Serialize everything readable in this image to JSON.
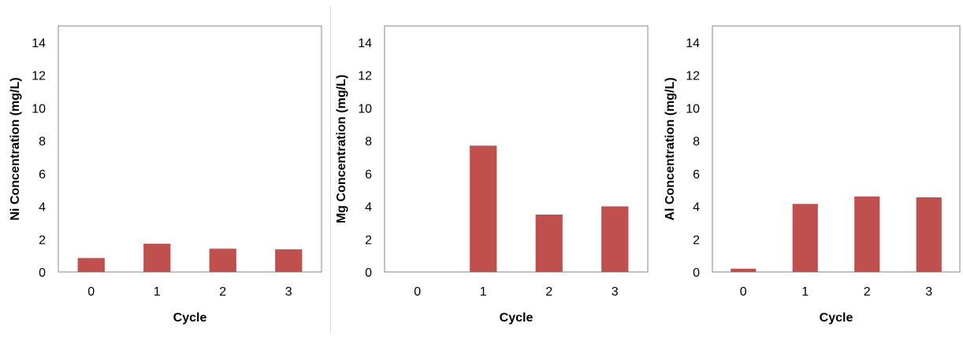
{
  "chart_data": [
    {
      "type": "bar",
      "categories": [
        "0",
        "1",
        "2",
        "3"
      ],
      "values": [
        0.85,
        1.72,
        1.42,
        1.38
      ],
      "xlabel": "Cycle",
      "ylabel": "Ni Concentration (mg/L)",
      "ylim": [
        0,
        15
      ],
      "yticks": [
        0,
        2,
        4,
        6,
        8,
        10,
        12,
        14
      ],
      "grid": false,
      "legend": "none",
      "bar_color": "#c0504d"
    },
    {
      "type": "bar",
      "categories": [
        "0",
        "1",
        "2",
        "3"
      ],
      "values": [
        0,
        7.7,
        3.5,
        4.0
      ],
      "xlabel": "Cycle",
      "ylabel": "Mg Concentration (mg/L)",
      "ylim": [
        0,
        15
      ],
      "yticks": [
        0,
        2,
        4,
        6,
        8,
        10,
        12,
        14
      ],
      "grid": false,
      "legend": "none",
      "bar_color": "#c0504d"
    },
    {
      "type": "bar",
      "categories": [
        "0",
        "1",
        "2",
        "3"
      ],
      "values": [
        0.2,
        4.15,
        4.6,
        4.55
      ],
      "xlabel": "Cycle",
      "ylabel": "Al Concentration (mg/L)",
      "ylim": [
        0,
        15
      ],
      "yticks": [
        0,
        2,
        4,
        6,
        8,
        10,
        12,
        14
      ],
      "grid": false,
      "legend": "none",
      "bar_color": "#c0504d"
    }
  ]
}
